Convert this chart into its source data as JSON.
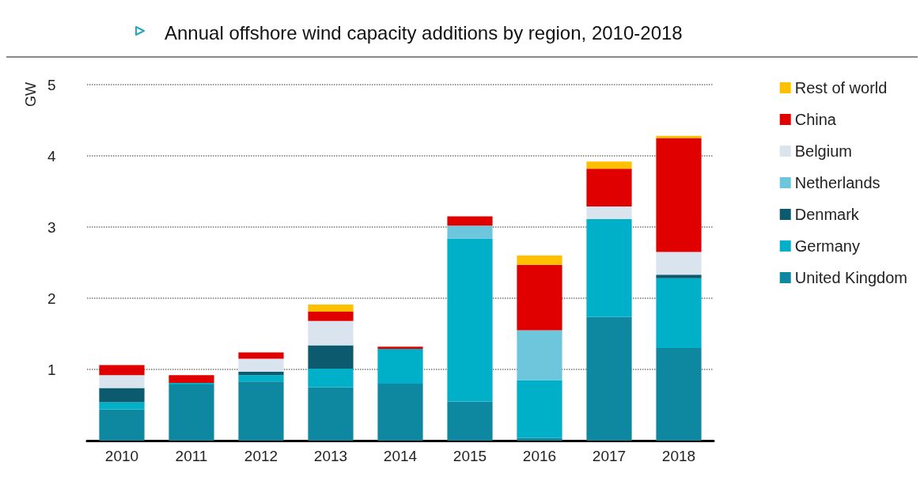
{
  "chart_data": {
    "type": "bar",
    "title": "Annual offshore wind capacity additions by region, 2010-2018",
    "ylabel": "GW",
    "categories": [
      "2010",
      "2011",
      "2012",
      "2013",
      "2014",
      "2015",
      "2016",
      "2017",
      "2018"
    ],
    "stacked": true,
    "series": [
      {
        "name": "United Kingdom",
        "color": "#0e87a0",
        "values": [
          0.44,
          0.79,
          0.83,
          0.75,
          0.8,
          0.55,
          0.04,
          1.74,
          1.3
        ]
      },
      {
        "name": "Germany",
        "color": "#00afc8",
        "values": [
          0.1,
          0.02,
          0.09,
          0.26,
          0.49,
          2.29,
          0.81,
          1.37,
          0.98
        ]
      },
      {
        "name": "Denmark",
        "color": "#0b5a6e",
        "values": [
          0.2,
          0,
          0.05,
          0.33,
          0,
          0,
          0,
          0,
          0.05
        ]
      },
      {
        "name": "Netherlands",
        "color": "#6dc6dc",
        "values": [
          0,
          0,
          0,
          0,
          0,
          0.18,
          0.7,
          0,
          0
        ]
      },
      {
        "name": "Belgium",
        "color": "#d9e4ef",
        "values": [
          0.18,
          0,
          0.18,
          0.34,
          0,
          0,
          0,
          0.18,
          0.32
        ]
      },
      {
        "name": "China",
        "color": "#e00000",
        "values": [
          0.14,
          0.11,
          0.09,
          0.13,
          0.03,
          0.13,
          0.92,
          0.53,
          1.6
        ]
      },
      {
        "name": "Rest of world",
        "color": "#ffc000",
        "values": [
          0,
          0,
          0,
          0.1,
          0,
          0,
          0.13,
          0.1,
          0.03
        ]
      }
    ],
    "ylim": [
      0,
      5
    ],
    "yticks": [
      {
        "value": 0,
        "label": null
      },
      1,
      2,
      3,
      4,
      5
    ],
    "grid": "y",
    "legend": "right"
  }
}
